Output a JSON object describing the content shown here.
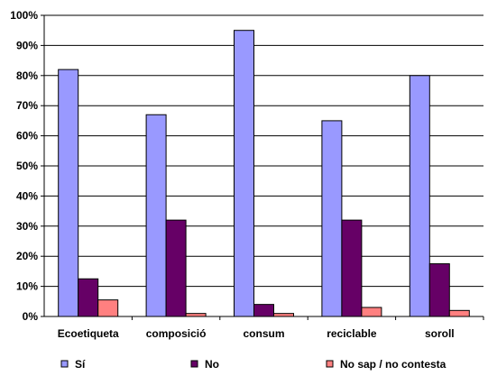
{
  "chart_data": {
    "type": "bar",
    "categories": [
      "Ecoetiqueta",
      "composició",
      "consum",
      "reciclable",
      "soroll"
    ],
    "series": [
      {
        "name": "Sí",
        "color": "#9999FF",
        "values": [
          82,
          67,
          95,
          65,
          80
        ]
      },
      {
        "name": "No",
        "color": "#660066",
        "values": [
          12.5,
          32,
          4,
          32,
          17.5
        ]
      },
      {
        "name": "No sap / no contesta",
        "color": "#FF8080",
        "values": [
          5.5,
          1,
          1,
          3,
          2
        ]
      }
    ],
    "yticks": [
      "0%",
      "10%",
      "20%",
      "30%",
      "40%",
      "50%",
      "60%",
      "70%",
      "80%",
      "90%",
      "100%"
    ],
    "ylim": [
      0,
      100
    ],
    "grid": true,
    "legend": "bottom",
    "title": "",
    "xlabel": "",
    "ylabel": ""
  }
}
